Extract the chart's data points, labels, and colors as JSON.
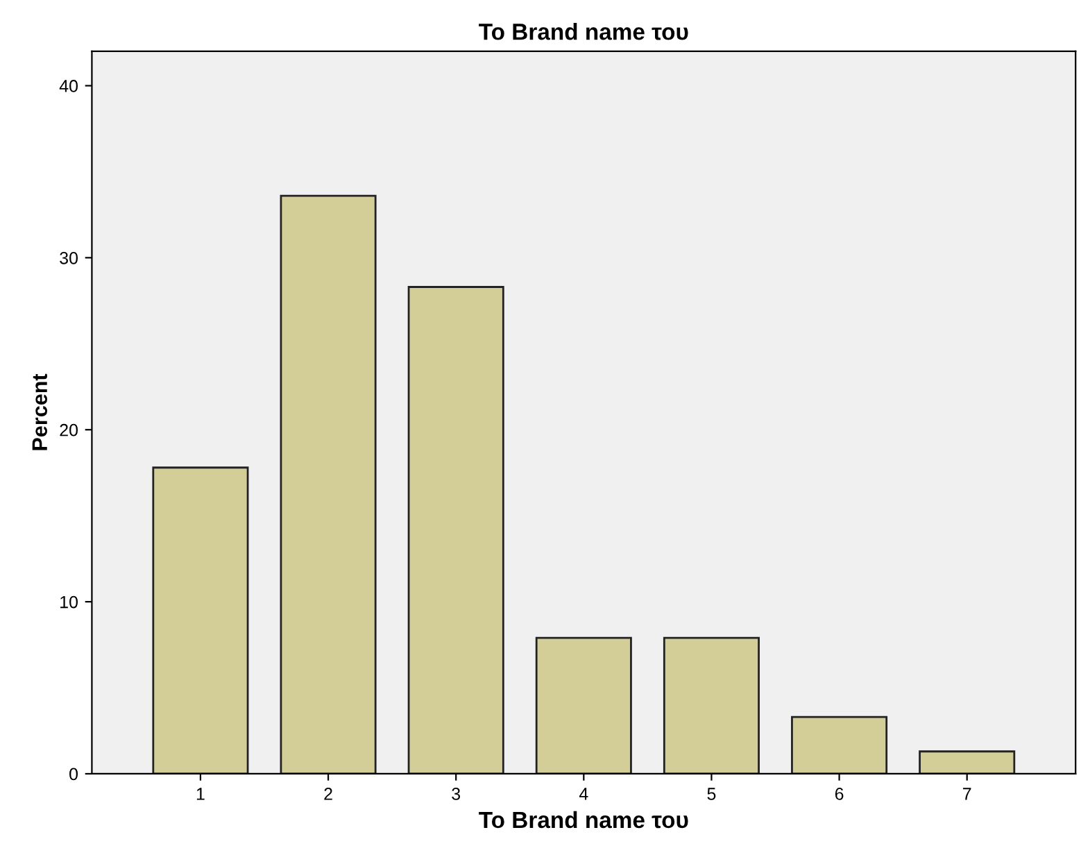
{
  "chart_data": {
    "type": "bar",
    "title": "Το Brand name του",
    "xlabel": "Το Brand name του",
    "ylabel": "Percent",
    "categories": [
      "1",
      "2",
      "3",
      "4",
      "5",
      "6",
      "7"
    ],
    "values": [
      17.8,
      33.6,
      28.3,
      7.9,
      7.9,
      3.3,
      1.3
    ],
    "color": "#d3ce98",
    "ylim": [
      0,
      42
    ],
    "yticks": [
      0,
      10,
      20,
      30,
      40
    ],
    "grid": false
  }
}
